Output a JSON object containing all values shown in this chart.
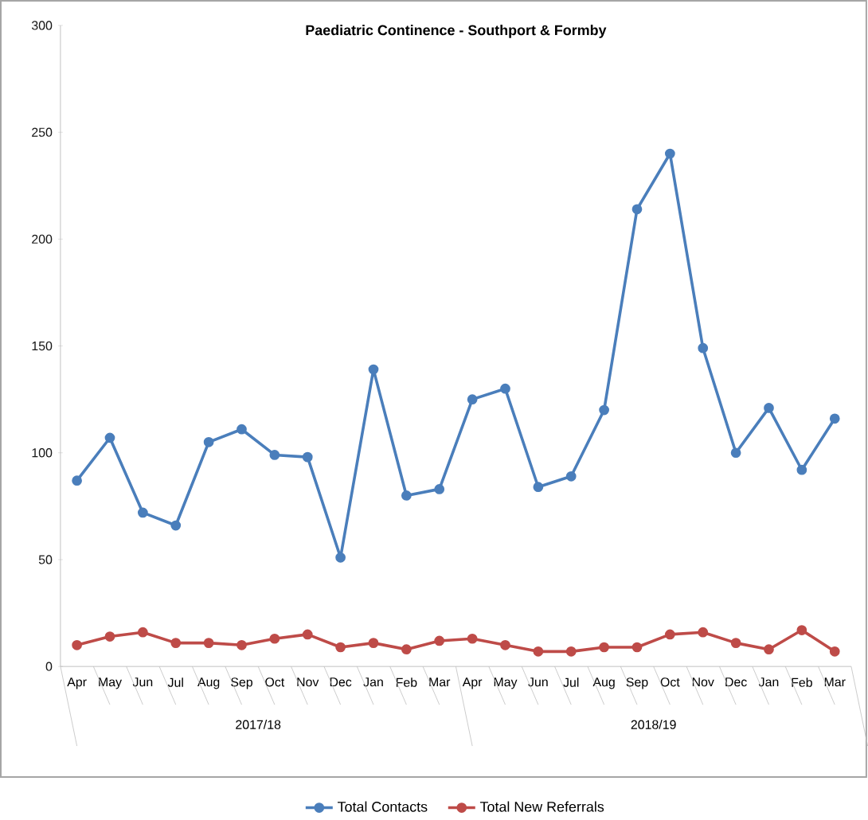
{
  "chart_data": {
    "type": "line",
    "title": "Paediatric Continence  - Southport & Formby",
    "categories": [
      "Apr",
      "May",
      "Jun",
      "Jul",
      "Aug",
      "Sep",
      "Oct",
      "Nov",
      "Dec",
      "Jan",
      "Feb",
      "Mar",
      "Apr",
      "May",
      "Jun",
      "Jul",
      "Aug",
      "Sep",
      "Oct",
      "Nov",
      "Dec",
      "Jan",
      "Feb",
      "Mar"
    ],
    "series": [
      {
        "name": "Total Contacts",
        "color": "#4a7ebb",
        "values": [
          87,
          107,
          72,
          66,
          105,
          111,
          99,
          98,
          51,
          139,
          80,
          83,
          125,
          130,
          84,
          89,
          120,
          214,
          240,
          149,
          100,
          121,
          92,
          116
        ]
      },
      {
        "name": "Total New Referrals",
        "color": "#be4b48",
        "values": [
          10,
          14,
          16,
          11,
          11,
          10,
          13,
          15,
          9,
          11,
          8,
          12,
          13,
          10,
          7,
          7,
          9,
          9,
          15,
          16,
          11,
          8,
          17,
          7
        ]
      }
    ],
    "annotations": [
      "2017/18",
      "2018/19"
    ],
    "ylim": [
      0,
      300
    ],
    "yticks": [
      0,
      50,
      100,
      150,
      200,
      250,
      300
    ],
    "grid": false,
    "legend": "bottom",
    "marker": "circle",
    "line_style": "solid"
  }
}
